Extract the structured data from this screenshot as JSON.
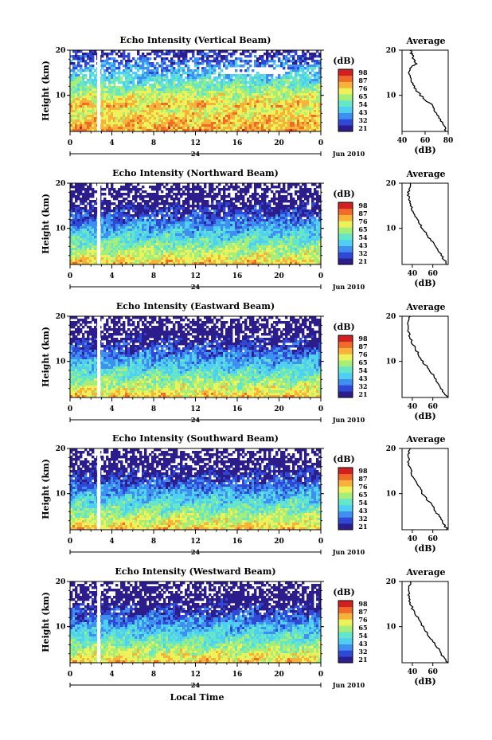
{
  "date_label": "Jun 2010",
  "panels": [
    {
      "title": "Echo Intensity (Vertical Beam)",
      "average_xticks": [
        "40",
        "60",
        "80"
      ]
    },
    {
      "title": "Echo Intensity (Northward Beam)",
      "average_xticks": [
        "40",
        "60"
      ]
    },
    {
      "title": "Echo Intensity (Eastward Beam)",
      "average_xticks": [
        "40",
        "60"
      ]
    },
    {
      "title": "Echo Intensity (Southward Beam)",
      "average_xticks": [
        "40",
        "60"
      ]
    },
    {
      "title": "Echo Intensity (Westward Beam)",
      "average_xticks": [
        "40",
        "60"
      ]
    }
  ],
  "common": {
    "ylabel": "Height (km)",
    "yticks": [
      "20",
      "10"
    ],
    "xticks": [
      "0",
      "4",
      "8",
      "12",
      "16",
      "20",
      "0"
    ],
    "day_label": "24",
    "colorbar_unit": "(dB)",
    "colorbar_ticks": [
      "98",
      "87",
      "76",
      "65",
      "54",
      "43",
      "32",
      "21"
    ],
    "average_title": "Average",
    "average_xlabel": "(dB)",
    "xlabel_bottom": "Local Time"
  },
  "colors": {
    "colormap": [
      "#2b1d8c",
      "#2f49d6",
      "#3f8ff0",
      "#4fd0f2",
      "#66e6c8",
      "#a6ee7a",
      "#eef25a",
      "#f7b23a",
      "#f06a2a",
      "#d21f1f"
    ]
  },
  "chart_data": [
    {
      "type": "heatmap",
      "title": "Echo Intensity (Vertical Beam)",
      "x_range_hours": [
        0,
        24
      ],
      "y_range_km": [
        2,
        20
      ],
      "colorbar_range_db": [
        21,
        98
      ],
      "data_gap_hour": 2.6,
      "average_profile": {
        "height_km": [
          2,
          4,
          6,
          8,
          10,
          12,
          14,
          16,
          17,
          18,
          19,
          20
        ],
        "db": [
          78,
          75,
          70,
          65,
          56,
          50,
          47,
          46,
          52,
          50,
          49,
          47
        ],
        "xlim": [
          40,
          80
        ]
      }
    },
    {
      "type": "heatmap",
      "title": "Echo Intensity (Northward Beam)",
      "x_range_hours": [
        0,
        24
      ],
      "y_range_km": [
        2,
        20
      ],
      "colorbar_range_db": [
        21,
        98
      ],
      "data_gap_hour": 2.6,
      "average_profile": {
        "height_km": [
          2,
          4,
          6,
          8,
          10,
          12,
          14,
          16,
          18,
          20
        ],
        "db": [
          74,
          68,
          63,
          56,
          50,
          45,
          40,
          37,
          36,
          38
        ],
        "xlim": [
          30,
          75
        ]
      }
    },
    {
      "type": "heatmap",
      "title": "Echo Intensity (Eastward Beam)",
      "x_range_hours": [
        0,
        24
      ],
      "y_range_km": [
        2,
        20
      ],
      "colorbar_range_db": [
        21,
        98
      ],
      "data_gap_hour": 2.6,
      "average_profile": {
        "height_km": [
          2,
          4,
          6,
          8,
          10,
          12,
          14,
          16,
          18,
          20
        ],
        "db": [
          74,
          68,
          63,
          57,
          50,
          45,
          40,
          37,
          36,
          38
        ],
        "xlim": [
          30,
          75
        ]
      }
    },
    {
      "type": "heatmap",
      "title": "Echo Intensity (Southward Beam)",
      "x_range_hours": [
        0,
        24
      ],
      "y_range_km": [
        2,
        20
      ],
      "colorbar_range_db": [
        21,
        98
      ],
      "data_gap_hour": 2.6,
      "average_profile": {
        "height_km": [
          2,
          4,
          6,
          8,
          10,
          12,
          14,
          16,
          18,
          20
        ],
        "db": [
          74,
          69,
          63,
          57,
          50,
          45,
          40,
          37,
          36,
          38
        ],
        "xlim": [
          30,
          75
        ]
      }
    },
    {
      "type": "heatmap",
      "title": "Echo Intensity (Westward Beam)",
      "x_range_hours": [
        0,
        24
      ],
      "y_range_km": [
        2,
        20
      ],
      "colorbar_range_db": [
        21,
        98
      ],
      "data_gap_hour": 2.6,
      "average_profile": {
        "height_km": [
          2,
          4,
          6,
          8,
          10,
          12,
          14,
          16,
          18,
          20
        ],
        "db": [
          74,
          68,
          63,
          56,
          50,
          45,
          40,
          37,
          36,
          38
        ],
        "xlim": [
          30,
          75
        ]
      }
    }
  ]
}
